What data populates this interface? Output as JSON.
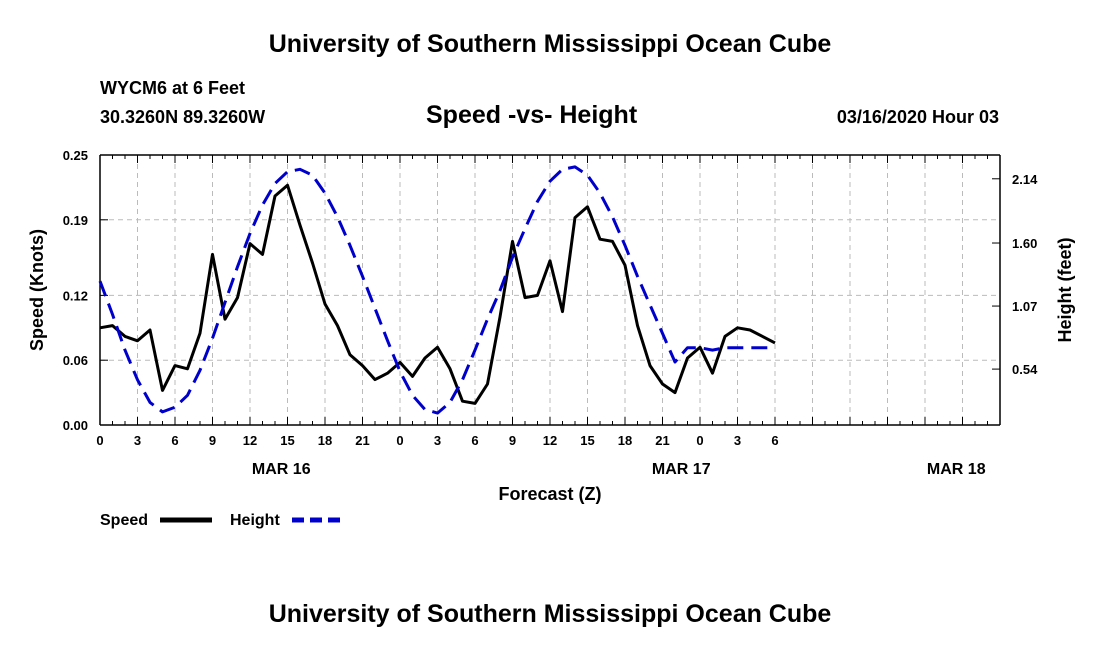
{
  "header": {
    "title": "University of Southern Mississippi Ocean Cube",
    "station": "WYCM6 at 6 Feet",
    "coordinates": "30.3260N 89.3260W",
    "subtitle": "Speed -vs- Height",
    "timestamp": "03/16/2020 Hour 03"
  },
  "footer": {
    "title": "University of Southern Mississippi Ocean Cube"
  },
  "chart_data": {
    "type": "line",
    "title": "Speed -vs- Height",
    "xlabel": "Forecast (Z)",
    "ylabel": "Speed (Knots)",
    "y2label": "Height (feet)",
    "xlim": [
      0,
      72
    ],
    "ylim": [
      0,
      0.25
    ],
    "y2lim": [
      0.07,
      2.34
    ],
    "grid": true,
    "x_ticks": [
      0,
      3,
      6,
      9,
      12,
      15,
      18,
      21,
      24,
      27,
      30,
      33,
      36,
      39,
      42,
      45,
      48,
      51,
      54,
      57,
      60,
      63,
      66,
      69,
      72
    ],
    "x_tick_labels": [
      "0",
      "3",
      "6",
      "9",
      "12",
      "15",
      "18",
      "21",
      "0",
      "3",
      "6",
      "9",
      "12",
      "15",
      "18",
      "21",
      "0",
      "3",
      "6"
    ],
    "x_tick_label_positions": [
      0,
      3,
      6,
      9,
      12,
      15,
      18,
      21,
      24,
      27,
      30,
      33,
      36,
      39,
      42,
      45,
      48,
      51,
      54
    ],
    "date_labels": [
      {
        "x": 14.5,
        "label": "MAR 16"
      },
      {
        "x": 46.5,
        "label": "MAR 17"
      },
      {
        "x": 68.5,
        "label": "MAR 18"
      }
    ],
    "y_ticks": [
      0.0,
      0.06,
      0.12,
      0.19,
      0.25
    ],
    "y_tick_labels": [
      "0.00",
      "0.06",
      "0.12",
      "0.19",
      "0.25"
    ],
    "y2_ticks": [
      0.54,
      1.07,
      1.6,
      2.14
    ],
    "y2_tick_labels": [
      "0.54",
      "1.07",
      "1.60",
      "2.14"
    ],
    "series": [
      {
        "name": "Speed",
        "axis": "left",
        "color": "#000000",
        "style": "solid",
        "x": [
          0,
          1,
          2,
          3,
          4,
          5,
          6,
          7,
          8,
          9,
          10,
          11,
          12,
          13,
          14,
          15,
          16,
          17,
          18,
          19,
          20,
          21,
          22,
          23,
          24,
          25,
          26,
          27,
          28,
          29,
          30,
          31,
          32,
          33,
          34,
          35,
          36,
          37,
          38,
          39,
          40,
          41,
          42,
          43,
          44,
          45,
          46,
          47,
          48,
          49,
          50,
          51,
          52,
          53,
          54
        ],
        "values": [
          0.09,
          0.092,
          0.082,
          0.078,
          0.088,
          0.032,
          0.055,
          0.052,
          0.085,
          0.158,
          0.098,
          0.118,
          0.168,
          0.158,
          0.212,
          0.222,
          0.185,
          0.15,
          0.112,
          0.092,
          0.065,
          0.055,
          0.042,
          0.048,
          0.058,
          0.045,
          0.062,
          0.072,
          0.052,
          0.022,
          0.02,
          0.038,
          0.1,
          0.17,
          0.118,
          0.12,
          0.152,
          0.105,
          0.192,
          0.202,
          0.172,
          0.17,
          0.148,
          0.092,
          0.055,
          0.038,
          0.03,
          0.062,
          0.072,
          0.048,
          0.082,
          0.09,
          0.088,
          0.082,
          0.076
        ]
      },
      {
        "name": "Height",
        "axis": "right",
        "color": "#0000cc",
        "style": "dashed",
        "x": [
          0,
          1,
          2,
          3,
          4,
          5,
          6,
          7,
          8,
          9,
          10,
          11,
          12,
          13,
          14,
          15,
          16,
          17,
          18,
          19,
          20,
          21,
          22,
          23,
          24,
          25,
          26,
          27,
          28,
          29,
          30,
          31,
          32,
          33,
          34,
          35,
          36,
          37,
          38,
          39,
          40,
          41,
          42,
          43,
          44,
          45,
          46,
          47,
          48,
          49,
          50,
          51,
          52,
          53,
          54
        ],
        "values": [
          1.28,
          1.0,
          0.7,
          0.45,
          0.26,
          0.18,
          0.22,
          0.32,
          0.53,
          0.8,
          1.1,
          1.4,
          1.68,
          1.92,
          2.1,
          2.2,
          2.22,
          2.17,
          2.02,
          1.82,
          1.58,
          1.32,
          1.05,
          0.78,
          0.52,
          0.32,
          0.2,
          0.17,
          0.26,
          0.45,
          0.7,
          0.96,
          1.2,
          1.48,
          1.72,
          1.95,
          2.12,
          2.22,
          2.24,
          2.17,
          2.02,
          1.82,
          1.58,
          1.32,
          1.08,
          0.84,
          0.6,
          0.72,
          0.72,
          0.7,
          0.72,
          0.72,
          0.72,
          0.72,
          0.72
        ]
      }
    ],
    "legend": {
      "placement": "bottom-left",
      "entries": [
        "Speed",
        "Height"
      ]
    }
  }
}
